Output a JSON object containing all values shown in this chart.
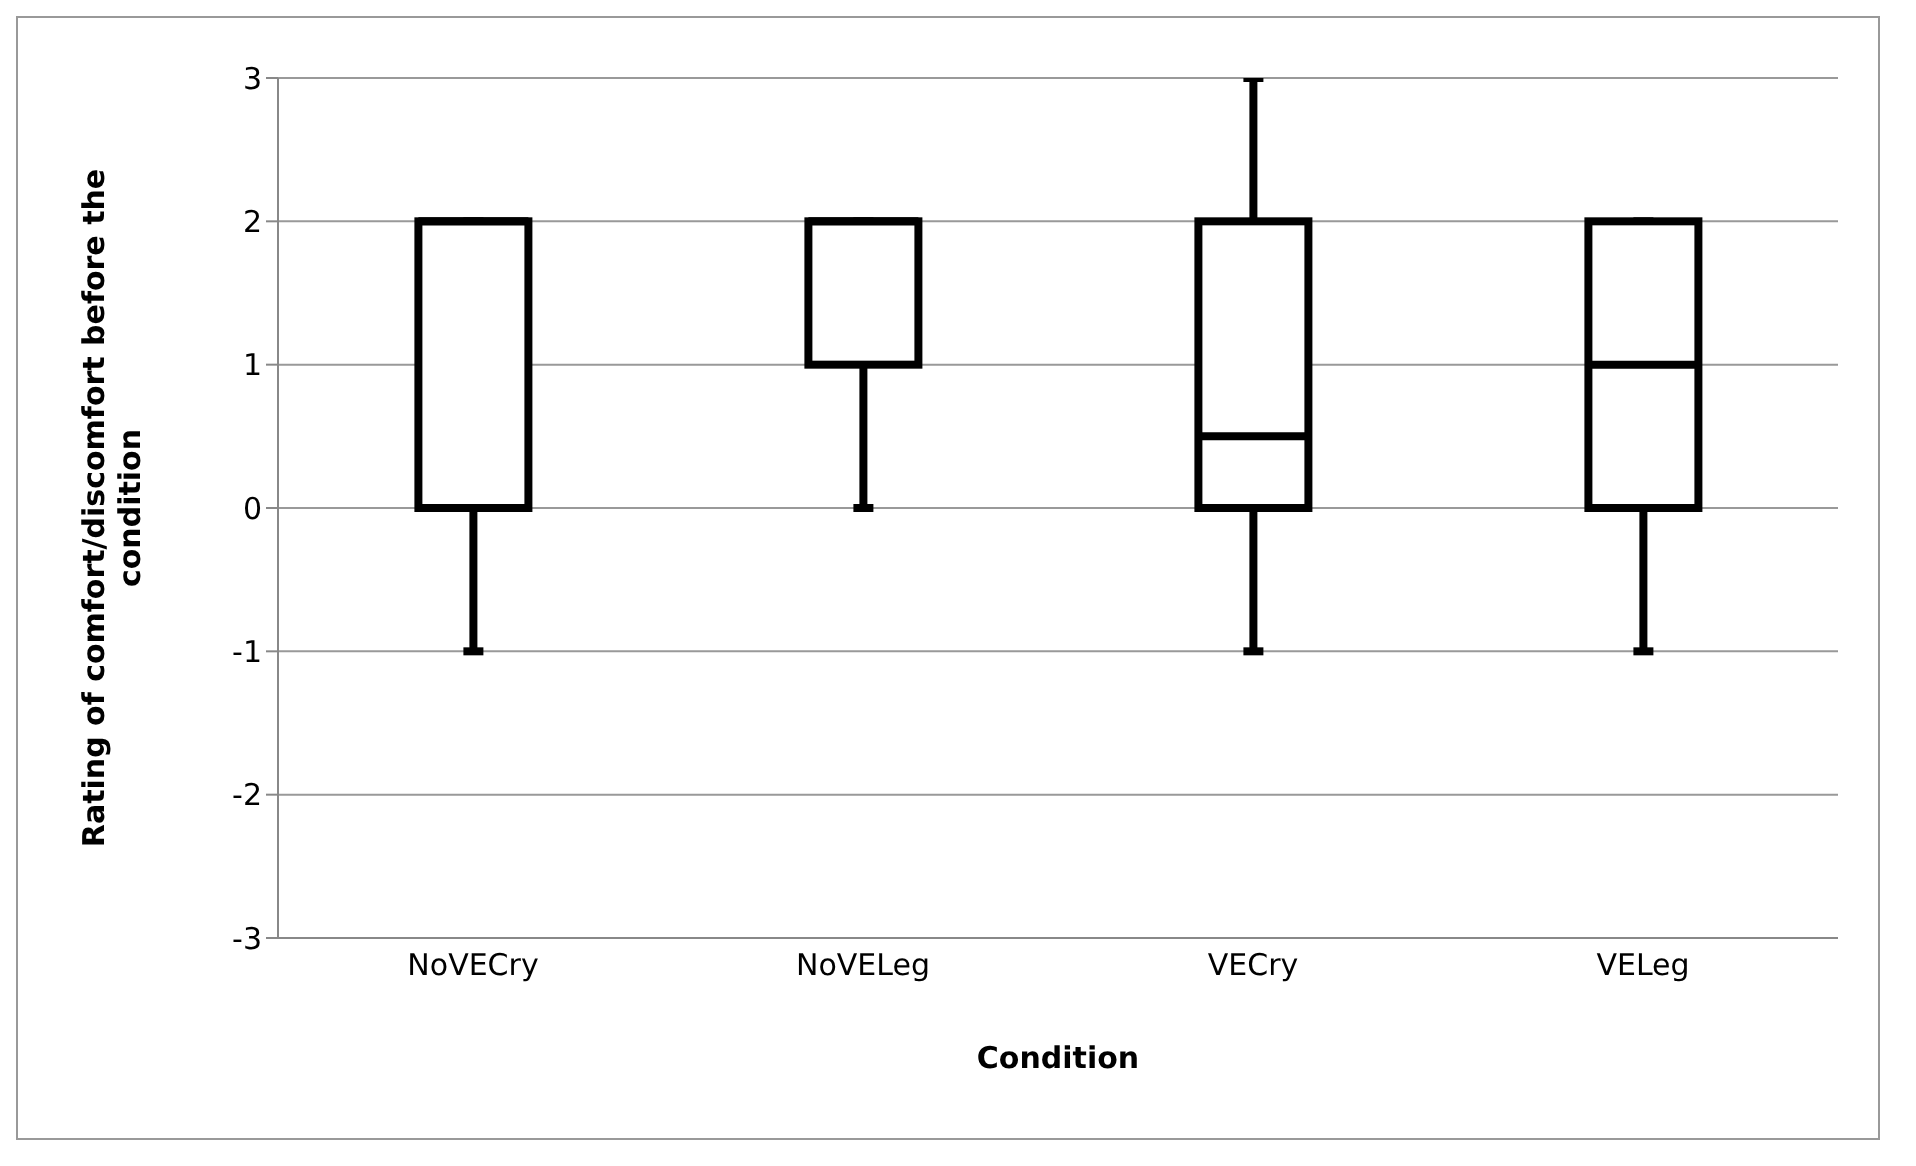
{
  "chart_data": {
    "type": "box",
    "xlabel": "Condition",
    "ylabel": "Rating of comfort/discomfort before the condition",
    "categories": [
      "NoVECry",
      "NoVELeg",
      "VECry",
      "VELeg"
    ],
    "boxes": [
      {
        "low": -1,
        "q1": 0,
        "median": 2,
        "q3": 2,
        "high": 2
      },
      {
        "low": 0,
        "q1": 1,
        "median": 2,
        "q3": 2,
        "high": 2
      },
      {
        "low": -1,
        "q1": 0,
        "median": 0.5,
        "q3": 2,
        "high": 3
      },
      {
        "low": -1,
        "q1": 0,
        "median": 1,
        "q3": 2,
        "high": 2
      }
    ],
    "color": "#000000",
    "ylim": [
      -3,
      3
    ],
    "yticks": [
      -3,
      -2,
      -1,
      0,
      1,
      2,
      3
    ],
    "grid": "y"
  }
}
